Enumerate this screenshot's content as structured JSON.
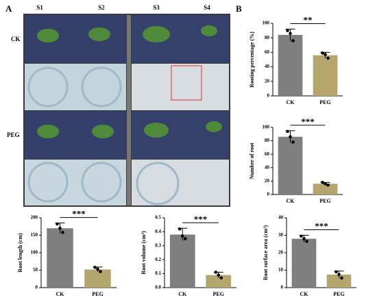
{
  "panel_labels": [
    "A",
    "B"
  ],
  "panel_a": {
    "columns": [
      "S1",
      "S2",
      "S3",
      "S4"
    ],
    "rows": [
      "CK",
      "PEG"
    ]
  },
  "chart_data": [
    {
      "type": "bar",
      "ylabel": "Rooting percentage (%)",
      "categories": [
        "CK",
        "PEG"
      ],
      "values": [
        84,
        56
      ],
      "errors": [
        8,
        4
      ],
      "points": [
        [
          90,
          86,
          76
        ],
        [
          59,
          57,
          52
        ]
      ],
      "colors": [
        "#7f7f7f",
        "#b5a66e"
      ],
      "ylim": [
        0,
        100
      ],
      "yticks": [
        0,
        20,
        40,
        60,
        80,
        100
      ],
      "significance": "**"
    },
    {
      "type": "bar",
      "ylabel": "Number of root",
      "categories": [
        "CK",
        "PEG"
      ],
      "values": [
        86,
        16
      ],
      "errors": [
        9,
        2
      ],
      "points": [
        [
          94,
          86,
          78
        ],
        [
          18,
          16,
          14
        ]
      ],
      "colors": [
        "#7f7f7f",
        "#b5a66e"
      ],
      "ylim": [
        0,
        100
      ],
      "yticks": [
        0,
        20,
        40,
        60,
        80,
        100
      ],
      "significance": "***"
    },
    {
      "type": "bar",
      "ylabel": "Root length (cm)",
      "categories": [
        "CK",
        "PEG"
      ],
      "values": [
        170,
        52
      ],
      "errors": [
        15,
        7
      ],
      "points": [
        [
          182,
          170,
          158
        ],
        [
          58,
          53,
          46
        ]
      ],
      "colors": [
        "#7f7f7f",
        "#b5a66e"
      ],
      "ylim": [
        0,
        200
      ],
      "yticks": [
        0,
        50,
        100,
        150,
        200
      ],
      "significance": "***"
    },
    {
      "type": "bar",
      "ylabel": "Root volume (cm³)",
      "categories": [
        "CK",
        "PEG"
      ],
      "values": [
        0.38,
        0.09
      ],
      "errors": [
        0.045,
        0.02
      ],
      "points": [
        [
          0.42,
          0.37,
          0.35
        ],
        [
          0.11,
          0.09,
          0.07
        ]
      ],
      "colors": [
        "#7f7f7f",
        "#b5a66e"
      ],
      "ylim": [
        0,
        0.5
      ],
      "yticks": [
        {
          "value": 0,
          "label": "0.0"
        },
        0.1,
        0.2,
        0.3,
        0.4,
        0.5
      ],
      "significance": "***"
    },
    {
      "type": "bar",
      "ylabel": "Root surface area (cm²)",
      "categories": [
        "CK",
        "PEG"
      ],
      "values": [
        28,
        7.5
      ],
      "errors": [
        2,
        2
      ],
      "points": [
        [
          29.5,
          28,
          26.5
        ],
        [
          9,
          7.5,
          5.5
        ]
      ],
      "colors": [
        "#7f7f7f",
        "#b5a66e"
      ],
      "ylim": [
        0,
        40
      ],
      "yticks": [
        0,
        10,
        20,
        30,
        40
      ],
      "significance": "***"
    }
  ]
}
